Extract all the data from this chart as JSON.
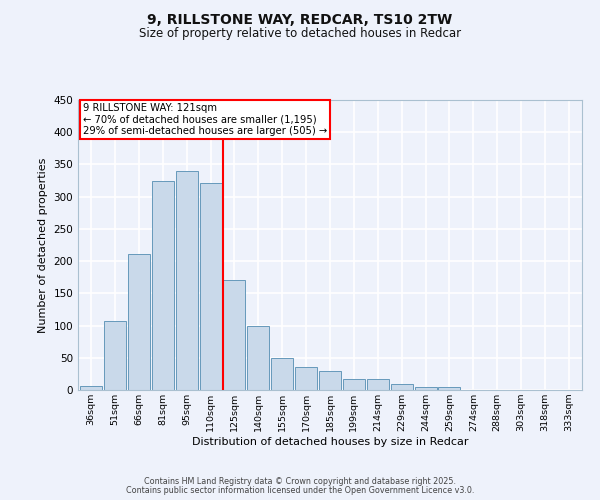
{
  "title": "9, RILLSTONE WAY, REDCAR, TS10 2TW",
  "subtitle": "Size of property relative to detached houses in Redcar",
  "xlabel": "Distribution of detached houses by size in Redcar",
  "ylabel": "Number of detached properties",
  "categories": [
    "36sqm",
    "51sqm",
    "66sqm",
    "81sqm",
    "95sqm",
    "110sqm",
    "125sqm",
    "140sqm",
    "155sqm",
    "170sqm",
    "185sqm",
    "199sqm",
    "214sqm",
    "229sqm",
    "244sqm",
    "259sqm",
    "274sqm",
    "288sqm",
    "303sqm",
    "318sqm",
    "333sqm"
  ],
  "values": [
    6,
    107,
    211,
    325,
    340,
    321,
    171,
    99,
    50,
    36,
    30,
    17,
    17,
    9,
    4,
    5,
    0,
    0,
    0,
    0,
    0
  ],
  "bar_color": "#c9d9ea",
  "bar_edge_color": "#6699bb",
  "vline_x": 5.5,
  "vline_label": "9 RILLSTONE WAY: 121sqm",
  "annotation_line1": "← 70% of detached houses are smaller (1,195)",
  "annotation_line2": "29% of semi-detached houses are larger (505) →",
  "ylim": [
    0,
    450
  ],
  "yticks": [
    0,
    50,
    100,
    150,
    200,
    250,
    300,
    350,
    400,
    450
  ],
  "bg_color": "#eef2fb",
  "grid_color": "#ffffff",
  "footer1": "Contains HM Land Registry data © Crown copyright and database right 2025.",
  "footer2": "Contains public sector information licensed under the Open Government Licence v3.0."
}
